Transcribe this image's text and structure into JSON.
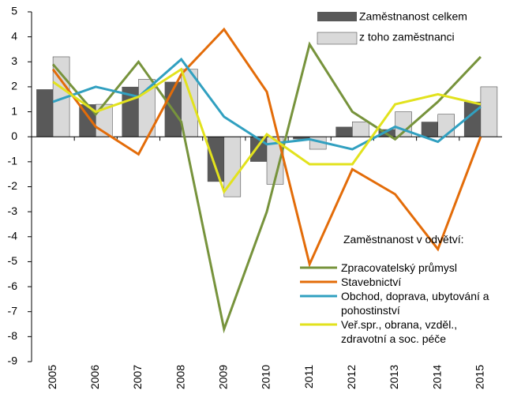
{
  "chart_data": {
    "type": "bar-line",
    "categories": [
      "2005",
      "2006",
      "2007",
      "2008",
      "2009",
      "2010",
      "2011",
      "2012",
      "2013",
      "2014",
      "2015"
    ],
    "ylim": [
      -9,
      5
    ],
    "yticks": [
      5,
      4,
      3,
      2,
      1,
      0,
      -1,
      -2,
      -3,
      -4,
      -5,
      -6,
      -7,
      -8,
      -9
    ],
    "bar_series": [
      {
        "name": "Zaměstnanost celkem",
        "color": "#595959",
        "values": [
          1.9,
          1.3,
          2.0,
          2.2,
          -1.8,
          -1.0,
          -0.1,
          0.4,
          0.3,
          0.6,
          1.4
        ]
      },
      {
        "name": "z toho zaměstnanci",
        "color": "#d9d9d9",
        "values": [
          3.2,
          1.3,
          2.3,
          2.7,
          -2.4,
          -1.9,
          -0.5,
          0.6,
          1.0,
          0.9,
          2.0
        ]
      }
    ],
    "line_legend_title": "Zaměstnanost v odvětví:",
    "series": [
      {
        "name": "Zpracovatelský průmysl",
        "color": "#77933c",
        "values": [
          2.9,
          0.9,
          3.0,
          0.6,
          -7.7,
          -3.0,
          3.7,
          1.0,
          -0.1,
          1.4,
          3.2
        ]
      },
      {
        "name": "Stavebnictví",
        "color": "#e36c09",
        "values": [
          2.7,
          0.4,
          -0.7,
          2.5,
          4.3,
          1.8,
          -5.1,
          -1.3,
          -2.3,
          -4.5,
          0.0
        ]
      },
      {
        "name": "Obchod, doprava, ubytování a pohostinství",
        "color": "#31a0c0",
        "values": [
          1.4,
          2.0,
          1.6,
          3.1,
          0.8,
          -0.3,
          -0.1,
          -0.5,
          0.4,
          -0.2,
          1.2
        ]
      },
      {
        "name": "Veř.spr., obrana, vzděl., zdravotní a soc. péče",
        "color": "#e2e21d",
        "values": [
          2.2,
          1.0,
          1.6,
          2.7,
          -2.2,
          0.1,
          -1.1,
          -1.1,
          1.3,
          1.7,
          1.3
        ]
      }
    ]
  }
}
